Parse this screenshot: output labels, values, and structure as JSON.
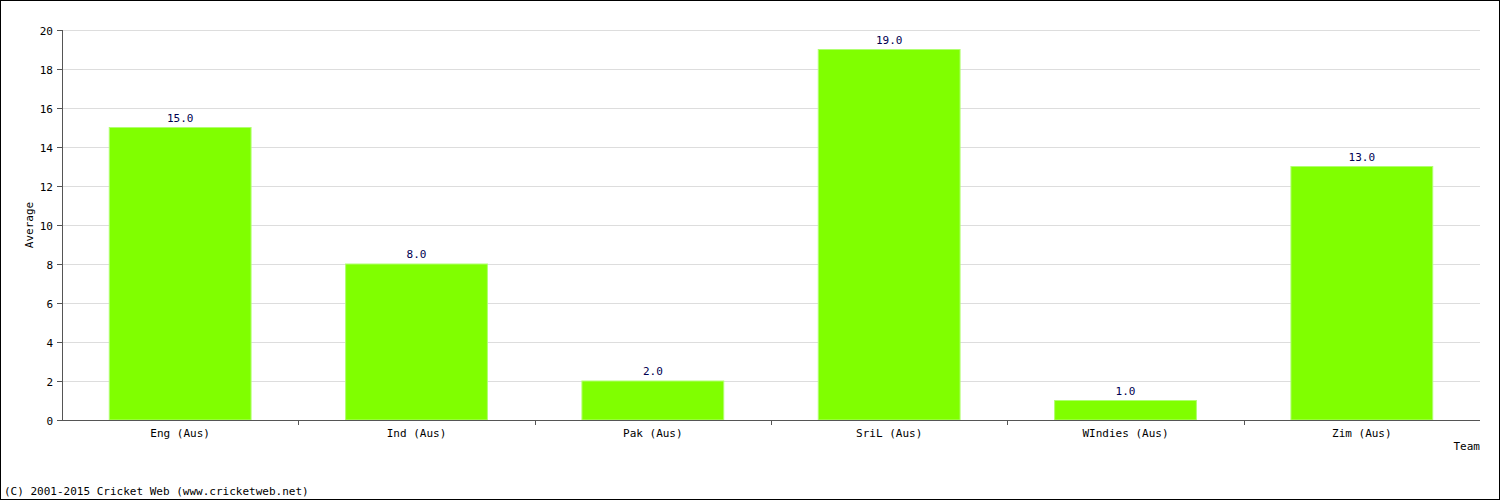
{
  "chart_data": {
    "type": "bar",
    "categories": [
      "Eng (Aus)",
      "Ind (Aus)",
      "Pak (Aus)",
      "SriL (Aus)",
      "WIndies (Aus)",
      "Zim (Aus)"
    ],
    "values": [
      15,
      8,
      2,
      19,
      1,
      13
    ],
    "value_labels": [
      "15.0",
      "8.0",
      "2.0",
      "19.0",
      "1.0",
      "13.0"
    ],
    "color": "#80ff00",
    "ylim": [
      0,
      20
    ],
    "yticks": [
      0,
      2,
      4,
      6,
      8,
      10,
      12,
      14,
      16,
      18,
      20
    ],
    "grid": true,
    "data_labels": true,
    "y_label": "Average",
    "x_label": "Team",
    "annotations": [
      "(C) 2001-2015 Cricket Web (www.cricketweb.net)"
    ]
  }
}
